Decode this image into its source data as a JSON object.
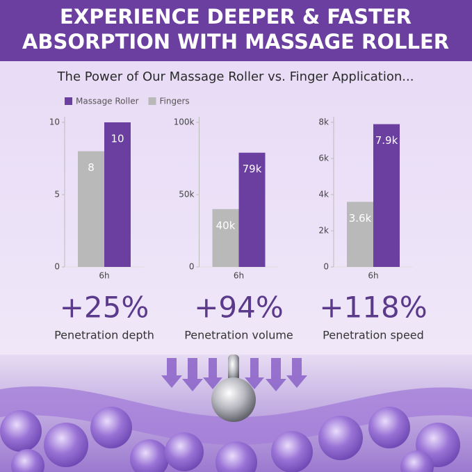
{
  "title": [
    "EXPERIENCE DEEPER & FASTER",
    "ABSORPTION WITH MASSAGE ROLLER"
  ],
  "subtitle": "The Power of Our Massage Roller vs. Finger Application...",
  "chart_data": [
    {
      "type": "bar",
      "categories": [
        "6h"
      ],
      "series": [
        {
          "name": "Fingers",
          "color": "#b9b9b9",
          "values": [
            8
          ]
        },
        {
          "name": "Massage Roller",
          "color": "#6a3fa0",
          "values": [
            10
          ]
        }
      ],
      "ylim": [
        0,
        10
      ],
      "yticks": [
        0,
        5,
        10
      ],
      "stat": "+25%",
      "stat_label": "Penetration depth"
    },
    {
      "type": "bar",
      "categories": [
        "6h"
      ],
      "series": [
        {
          "name": "Fingers",
          "color": "#b9b9b9",
          "values": [
            40000
          ],
          "value_labels": [
            "40k"
          ]
        },
        {
          "name": "Massage Roller",
          "color": "#6a3fa0",
          "values": [
            79000
          ],
          "value_labels": [
            "79k"
          ]
        }
      ],
      "ylim": [
        0,
        100000
      ],
      "yticks": [
        0,
        {
          "value": 50000,
          "label": "50k"
        },
        {
          "value": 100000,
          "label": "100k"
        }
      ],
      "stat": "+94%",
      "stat_label": "Penetration volume"
    },
    {
      "type": "bar",
      "categories": [
        "6h"
      ],
      "series": [
        {
          "name": "Fingers",
          "color": "#b9b9b9",
          "values": [
            3600
          ],
          "value_labels": [
            "3.6k"
          ]
        },
        {
          "name": "Massage Roller",
          "color": "#6a3fa0",
          "values": [
            7900
          ],
          "value_labels": [
            "7.9k"
          ]
        }
      ],
      "ylim": [
        0,
        8000
      ],
      "yticks": [
        0,
        {
          "value": 2000,
          "label": "2k"
        },
        {
          "value": 4000,
          "label": "4k"
        },
        {
          "value": 6000,
          "label": "6k"
        },
        {
          "value": 8000,
          "label": "8k"
        }
      ],
      "stat": "+118%",
      "stat_label": "Penetration speed"
    }
  ]
}
